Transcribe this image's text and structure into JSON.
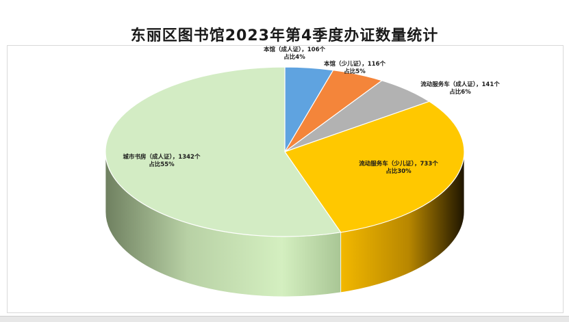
{
  "chart_data": {
    "type": "pie",
    "title": "东丽区图书馆2023年第4季度办证数量统计",
    "slices": [
      {
        "label": "本馆（成人证）",
        "value": 106,
        "percent": 4,
        "color": "#5fa3e0",
        "text1": "本馆（成人证），106个",
        "text2": "占比4%"
      },
      {
        "label": "本馆（少儿证）",
        "value": 116,
        "percent": 5,
        "color": "#f4853a",
        "text1": "本馆（少儿证），116个",
        "text2": "占比5%"
      },
      {
        "label": "流动服务车（成人证）",
        "value": 141,
        "percent": 6,
        "color": "#b2b2b2",
        "text1": "流动服务车（成人证），141个",
        "text2": "占比6%"
      },
      {
        "label": "流动服务车（少儿证）",
        "value": 733,
        "percent": 30,
        "color": "#ffc800",
        "text1": "流动服务车（少儿证），733个",
        "text2": "占比30%"
      },
      {
        "label": "城市书房（成人证）",
        "value": 1342,
        "percent": 55,
        "color": "#d3ecc4",
        "text1": "城市书房（成人证），1342个",
        "text2": "占比55%"
      }
    ]
  }
}
